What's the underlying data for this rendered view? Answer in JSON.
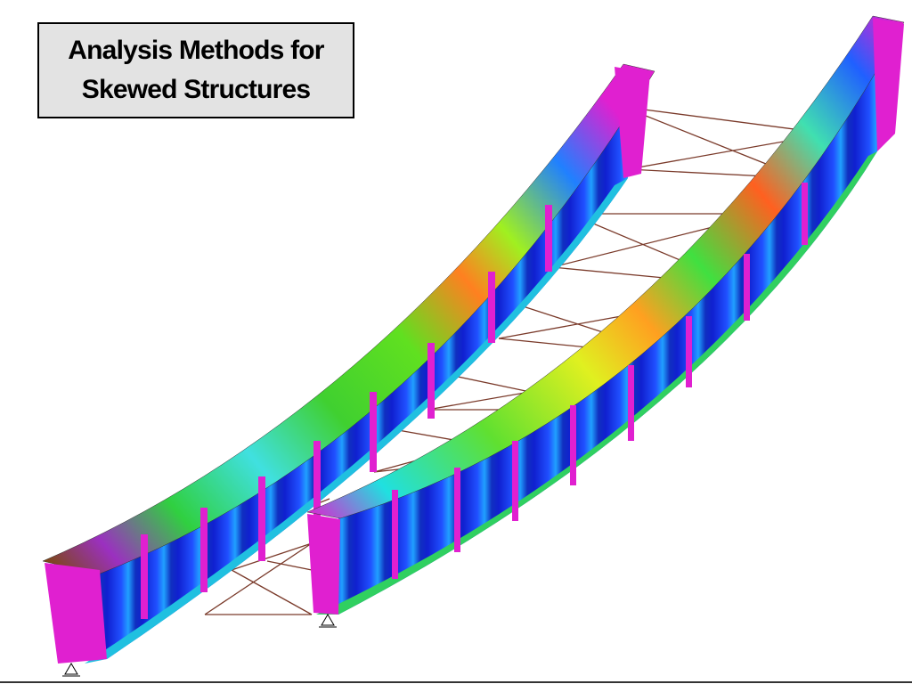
{
  "header": {
    "title": [
      "Analysis Methods for",
      "Skewed Structures"
    ]
  }
}
